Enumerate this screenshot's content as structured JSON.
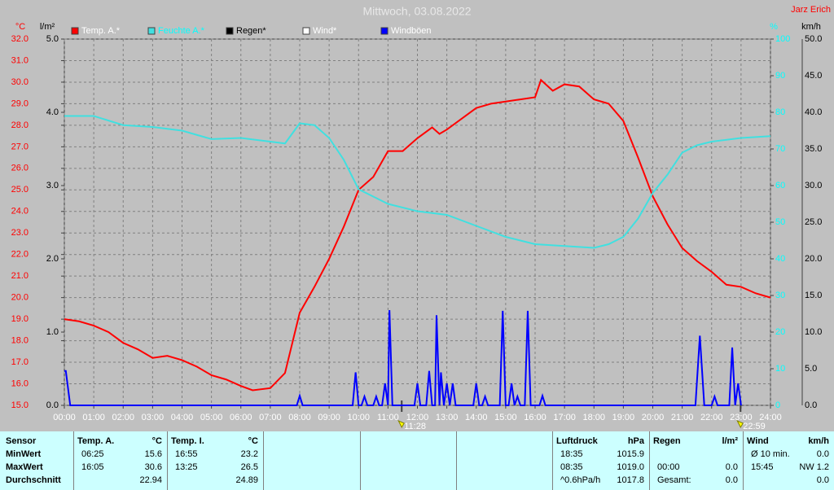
{
  "chart_data": {
    "type": "line",
    "title": "Mittwoch, 03.08.2022",
    "author": "Jarz Erich",
    "grid": true,
    "xlim": [
      0,
      24
    ],
    "xticks": [
      {
        "value": 0,
        "label": "00:00"
      },
      {
        "value": 1,
        "label": "01:00"
      },
      {
        "value": 2,
        "label": "02:00"
      },
      {
        "value": 3,
        "label": "03:00"
      },
      {
        "value": 4,
        "label": "04:00"
      },
      {
        "value": 5,
        "label": "05:00"
      },
      {
        "value": 6,
        "label": "06:00"
      },
      {
        "value": 7,
        "label": "07:00"
      },
      {
        "value": 8,
        "label": "08:00"
      },
      {
        "value": 9,
        "label": "09:00"
      },
      {
        "value": 10,
        "label": "10:00"
      },
      {
        "value": 11,
        "label": "11:00"
      },
      {
        "value": 12,
        "label": "12:00"
      },
      {
        "value": 13,
        "label": "13:00"
      },
      {
        "value": 14,
        "label": "14:00"
      },
      {
        "value": 15,
        "label": "15:00"
      },
      {
        "value": 16,
        "label": "16:00"
      },
      {
        "value": 17,
        "label": "17:00"
      },
      {
        "value": 18,
        "label": "18:00"
      },
      {
        "value": 19,
        "label": "19:00"
      },
      {
        "value": 20,
        "label": "20:00"
      },
      {
        "value": 21,
        "label": "21:00"
      },
      {
        "value": 22,
        "label": "22:00"
      },
      {
        "value": 23,
        "label": "23:00"
      },
      {
        "value": 24,
        "label": "24:00"
      }
    ],
    "markers": [
      {
        "value": 11.4667,
        "label": "11:28"
      },
      {
        "value": 22.9833,
        "label": "22:59"
      }
    ],
    "axes": [
      {
        "name": "°C",
        "color": "#ff0000",
        "lim": [
          15,
          32
        ],
        "ticks": [
          {
            "value": 15,
            "label": "15.0"
          },
          {
            "value": 16,
            "label": "16.0"
          },
          {
            "value": 17,
            "label": "17.0"
          },
          {
            "value": 18,
            "label": "18.0"
          },
          {
            "value": 19,
            "label": "19.0"
          },
          {
            "value": 20,
            "label": "20.0"
          },
          {
            "value": 21,
            "label": "21.0"
          },
          {
            "value": 22,
            "label": "22.0"
          },
          {
            "value": 23,
            "label": "23.0"
          },
          {
            "value": 24,
            "label": "24.0"
          },
          {
            "value": 25,
            "label": "25.0"
          },
          {
            "value": 26,
            "label": "26.0"
          },
          {
            "value": 27,
            "label": "27.0"
          },
          {
            "value": 28,
            "label": "28.0"
          },
          {
            "value": 29,
            "label": "29.0"
          },
          {
            "value": 30,
            "label": "30.0"
          },
          {
            "value": 31,
            "label": "31.0"
          },
          {
            "value": 32,
            "label": "32.0"
          }
        ]
      },
      {
        "name": "l/m²",
        "color": "#000000",
        "lim": [
          0,
          5
        ],
        "ticks": [
          {
            "value": 0,
            "label": "0.0"
          },
          {
            "value": 1,
            "label": "1.0"
          },
          {
            "value": 2,
            "label": "2.0"
          },
          {
            "value": 3,
            "label": "3.0"
          },
          {
            "value": 4,
            "label": "4.0"
          },
          {
            "value": 5,
            "label": "5.0"
          }
        ]
      },
      {
        "name": "%",
        "color": "#00ffff",
        "lim": [
          0,
          100
        ],
        "ticks": [
          0,
          10,
          20,
          30,
          40,
          50,
          60,
          70,
          80,
          90,
          100
        ]
      },
      {
        "name": "km/h",
        "color": "#000000",
        "lim": [
          0,
          50
        ],
        "ticks": [
          {
            "value": 0,
            "label": "0.0"
          },
          {
            "value": 5,
            "label": "5.0"
          },
          {
            "value": 10,
            "label": "10.0"
          },
          {
            "value": 15,
            "label": "15.0"
          },
          {
            "value": 20,
            "label": "20.0"
          },
          {
            "value": 25,
            "label": "25.0"
          },
          {
            "value": 30,
            "label": "30.0"
          },
          {
            "value": 35,
            "label": "35.0"
          },
          {
            "value": 40,
            "label": "40.0"
          },
          {
            "value": 45,
            "label": "45.0"
          },
          {
            "value": 50,
            "label": "50.0"
          }
        ]
      }
    ],
    "series": [
      {
        "name": "Temp. A.*",
        "color": "#ff0000",
        "axis": 0,
        "x": [
          0,
          0.5,
          1,
          1.5,
          2,
          2.5,
          3,
          3.5,
          4,
          4.5,
          5,
          5.5,
          6,
          6.4,
          7,
          7.5,
          8,
          8.5,
          9,
          9.5,
          10,
          10.5,
          11,
          11.5,
          12,
          12.5,
          12.75,
          13,
          13.5,
          14,
          14.5,
          15,
          15.5,
          16,
          16.2,
          16.6,
          17,
          17.5,
          18,
          18.5,
          19,
          19.5,
          20,
          20.5,
          21,
          21.5,
          22,
          22.5,
          23,
          23.5,
          24
        ],
        "values": [
          19.0,
          18.9,
          18.7,
          18.4,
          17.9,
          17.6,
          17.2,
          17.3,
          17.1,
          16.8,
          16.4,
          16.2,
          15.9,
          15.7,
          15.8,
          16.5,
          19.3,
          20.5,
          21.8,
          23.3,
          25.0,
          25.6,
          26.8,
          26.8,
          27.4,
          27.9,
          27.6,
          27.8,
          28.3,
          28.8,
          29.0,
          29.1,
          29.2,
          29.3,
          30.1,
          29.6,
          29.9,
          29.8,
          29.2,
          29.0,
          28.2,
          26.5,
          24.7,
          23.4,
          22.3,
          21.7,
          21.2,
          20.6,
          20.5,
          20.2,
          20.0
        ]
      },
      {
        "name": "Feuchte A.*",
        "color": "#40e0e0",
        "axis": 2,
        "x": [
          0,
          1,
          2,
          3,
          4,
          5,
          6,
          7,
          7.5,
          8,
          8.5,
          9,
          9.5,
          10,
          10.5,
          11,
          12,
          13,
          14,
          15,
          15.5,
          16,
          17,
          18,
          18.5,
          19,
          19.5,
          20,
          20.5,
          21,
          21.5,
          22,
          23,
          24
        ],
        "values": [
          79,
          79,
          76.5,
          76,
          75,
          72.7,
          73,
          72,
          71.5,
          77,
          76.5,
          73,
          67,
          59,
          57,
          55,
          53,
          52,
          49,
          46,
          45,
          44,
          43.5,
          43,
          44,
          46,
          51,
          58,
          63,
          69,
          71,
          72,
          73,
          73.5
        ]
      },
      {
        "name": "Regen*",
        "color": "#000000",
        "axis": 1
      },
      {
        "name": "Wind*",
        "color": "#ffffff",
        "axis": 3
      },
      {
        "name": "Windböen",
        "color": "#0000ff",
        "axis": 3,
        "x": [
          0,
          0.05,
          0.2,
          7.9,
          8.0,
          8.1,
          9.8,
          9.9,
          10.0,
          10.1,
          10.2,
          10.3,
          10.5,
          10.6,
          10.7,
          10.8,
          10.9,
          11.0,
          11.05,
          11.15,
          11.9,
          12.0,
          12.1,
          12.3,
          12.4,
          12.5,
          12.6,
          12.65,
          12.75,
          12.8,
          12.9,
          13.0,
          13.1,
          13.2,
          13.3,
          13.9,
          14.0,
          14.1,
          14.2,
          14.3,
          14.4,
          14.8,
          14.9,
          15.0,
          15.1,
          15.2,
          15.3,
          15.4,
          15.5,
          15.65,
          15.75,
          15.85,
          16.15,
          16.25,
          16.35,
          21.45,
          21.6,
          21.75,
          22.0,
          22.1,
          22.2,
          22.6,
          22.7,
          22.8,
          22.9,
          23.0
        ],
        "values": [
          4.7,
          4.7,
          0,
          0,
          1.3,
          0,
          0,
          4.5,
          0,
          0,
          1.2,
          0,
          0,
          1.2,
          0,
          0,
          3.0,
          0,
          13.0,
          0,
          0,
          3.0,
          0,
          0,
          4.7,
          0,
          0,
          12.3,
          0,
          4.5,
          0,
          3.0,
          0,
          3.0,
          0,
          0,
          3.0,
          0,
          0,
          1.2,
          0,
          0,
          12.9,
          0,
          0,
          3.0,
          0,
          1.2,
          0,
          0,
          12.9,
          0,
          0,
          1.3,
          0,
          0,
          9.5,
          0,
          0,
          1.2,
          0,
          0,
          7.9,
          0,
          3.0,
          0
        ]
      }
    ]
  },
  "table": {
    "sensor": {
      "header": "Sensor",
      "rows": [
        "MinWert",
        "MaxWert",
        "Durchschnitt"
      ]
    },
    "blocks": [
      {
        "name": "Temp. A.",
        "unit": "°C",
        "rows": [
          {
            "time": "06:25",
            "value": "15.6"
          },
          {
            "time": "16:05",
            "value": "30.6"
          },
          {
            "value": "22.94"
          }
        ]
      },
      {
        "name": "Temp. I.",
        "unit": "°C",
        "rows": [
          {
            "time": "16:55",
            "value": "23.2"
          },
          {
            "time": "13:25",
            "value": "26.5"
          },
          {
            "value": "24.89"
          }
        ]
      },
      {
        "name": "Luftdruck",
        "unit": "hPa",
        "rows": [
          {
            "time": "18:35",
            "value": "1015.9"
          },
          {
            "time": "08:35",
            "value": "1019.0"
          },
          {
            "time": "^0.6hPa/h",
            "value": "1017.8"
          }
        ]
      },
      {
        "name": "Regen",
        "unit": "l/m²",
        "rows": [
          null,
          {
            "time": "00:00",
            "value": "0.0"
          },
          {
            "time": "Gesamt:",
            "value": "0.0"
          }
        ]
      },
      {
        "name": "Wind",
        "unit": "km/h",
        "rows": [
          {
            "time": "Ø 10 min.",
            "value": "0.0"
          },
          {
            "time": "15:45",
            "value": "NW 1.2"
          },
          {
            "value": "0.0"
          }
        ]
      }
    ]
  }
}
